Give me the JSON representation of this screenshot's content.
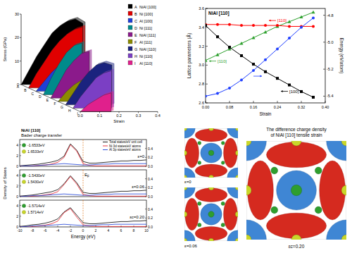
{
  "chart_data": [
    {
      "type": "area",
      "xlabel": "Strain",
      "ylabel": "Stress (GPa)",
      "x": [
        0,
        0.04,
        0.08,
        0.12,
        0.16,
        0.2,
        0.24,
        0.28,
        0.32,
        0.36
      ],
      "xlim": [
        0,
        0.4
      ],
      "xticks": [
        {
          "value": 0,
          "label": "0.0"
        },
        0.1,
        0.2,
        0.3,
        0.4
      ],
      "ylim": [
        0,
        30
      ],
      "yticks": [
        0,
        10,
        20,
        30
      ],
      "legend": "upper right",
      "series": [
        {
          "label": "A",
          "name": "NiAl [100]",
          "color": "#000000",
          "values": [
            0,
            6,
            12,
            17,
            22,
            25,
            27,
            28,
            26,
            null
          ]
        },
        {
          "label": "B",
          "name": "Ni [100]",
          "color": "#e00000",
          "values": [
            0,
            6,
            11,
            16,
            20,
            23,
            25,
            26,
            null,
            null
          ]
        },
        {
          "label": "C",
          "name": "Al [100]",
          "color": "#1f3fd8",
          "values": [
            0,
            4,
            8,
            11,
            13,
            14,
            13,
            null,
            null,
            null
          ]
        },
        {
          "label": "D",
          "name": "Ni [111]",
          "color": "#008b8b",
          "values": [
            0,
            7,
            13,
            18,
            21,
            22,
            null,
            null,
            null,
            null
          ]
        },
        {
          "label": "E",
          "name": "NiAl [111]",
          "color": "#8b1a8b",
          "values": [
            0,
            6,
            12,
            16,
            19,
            20,
            null,
            null,
            null,
            null
          ]
        },
        {
          "label": "F",
          "name": "Al [111]",
          "color": "#8b8b00",
          "values": [
            0,
            4,
            7,
            9,
            10,
            null,
            null,
            null,
            null,
            null
          ]
        },
        {
          "label": "G",
          "name": "NiAl [110]",
          "color": "#1a237e",
          "values": [
            0,
            5,
            10,
            14,
            17,
            18,
            17,
            null,
            null,
            null
          ]
        },
        {
          "label": "H",
          "name": "Ni [110]",
          "color": "#7b3fc4",
          "values": [
            0,
            5,
            9,
            13,
            15,
            16,
            null,
            null,
            null,
            null
          ]
        },
        {
          "label": "I",
          "name": "Al [110]",
          "color": "#e0208c",
          "values": [
            0,
            3,
            5,
            7,
            8,
            null,
            null,
            null,
            null,
            null
          ]
        }
      ]
    },
    {
      "type": "line",
      "title": "NiAl [110]",
      "xlabel": "Strain",
      "ylabel": "Lattice parameters (Å)",
      "y2label": "Energy (eV/atom)",
      "x": [
        0,
        0.04,
        0.08,
        0.12,
        0.16,
        0.2,
        0.24,
        0.28,
        0.32,
        0.36
      ],
      "xlim": [
        0,
        0.4
      ],
      "xticks": [
        {
          "value": 0,
          "label": "0.00"
        },
        0.08,
        0.16,
        0.24,
        0.32,
        {
          "value": 0.4,
          "label": "0.40"
        }
      ],
      "ylim": [
        2.6,
        3.6
      ],
      "yticks": [
        2.6,
        2.8,
        {
          "value": 3,
          "label": "3.0"
        },
        3.2,
        3.4,
        3.6
      ],
      "y2lim": [
        -5.45,
        -4.75
      ],
      "y2ticks": [
        -5.4,
        -5.2,
        {
          "value": -5,
          "label": "-5.0"
        },
        -4.8
      ],
      "series": [
        {
          "name": "[110]",
          "color": "#2ca02c",
          "marker": "triangle",
          "values": [
            3.05,
            3.11,
            3.17,
            3.23,
            3.29,
            3.35,
            3.41,
            3.46,
            3.51,
            3.56
          ]
        },
        {
          "name": "[110]",
          "color": "#ff0000",
          "marker": "circle",
          "values": [
            3.43,
            3.43,
            3.43,
            3.42,
            3.42,
            3.42,
            3.42,
            3.41,
            3.41,
            3.41
          ]
        },
        {
          "name": "[100]",
          "color": "#000000",
          "marker": "square",
          "values": [
            3.42,
            3.3,
            3.19,
            3.1,
            3.01,
            2.93,
            2.86,
            2.79,
            2.72,
            2.66
          ]
        },
        {
          "color": "#1f3fff",
          "marker": "circle",
          "axis": "y2",
          "values": [
            -5.4,
            -5.38,
            -5.34,
            -5.28,
            -5.21,
            -5.13,
            -5.05,
            -4.97,
            -4.89,
            -4.82
          ]
        }
      ]
    },
    {
      "type": "line",
      "title": "NiAl [110]",
      "subtitle": "Bader charge transfer",
      "legend": "upper right",
      "annotations": {
        "strain": "ε=0",
        "bader_ni": "-1.6533eV",
        "bader_al": "1.6533eV"
      },
      "fermi_level": 0,
      "x": [
        -10,
        -9,
        -8,
        -7,
        -6,
        -5,
        -4,
        -3,
        -2,
        -1,
        0,
        1,
        2,
        3,
        4,
        5,
        6,
        7,
        8,
        9,
        10
      ],
      "xlim": [
        -10,
        10
      ],
      "ylim": [
        0,
        5
      ],
      "yticks": [
        0,
        2,
        4
      ],
      "y2lim": [
        0,
        0.6
      ],
      "y2ticks": [
        {
          "value": 0,
          "label": "0.0"
        },
        0.2,
        0.4
      ],
      "series": [
        {
          "name": "Total states/eV unit cell",
          "color": "#000000",
          "values": [
            0.1,
            0.2,
            0.3,
            0.4,
            0.6,
            0.8,
            1.1,
            1.9,
            4.2,
            3.0,
            0.9,
            0.6,
            0.6,
            0.7,
            0.8,
            0.9,
            1.0,
            1.0,
            1.1,
            1.1,
            1.2
          ]
        },
        {
          "name": "Ni 3d states/eV atoms",
          "color": "#e8202a",
          "axis": "y2",
          "values": [
            0,
            0,
            0.01,
            0.02,
            0.03,
            0.05,
            0.09,
            0.2,
            0.48,
            0.34,
            0.06,
            0.02,
            0.01,
            0.01,
            0.01,
            0.01,
            0.01,
            0.01,
            0.01,
            0.01,
            0.01
          ]
        },
        {
          "name": "Al 3p states/eV atoms",
          "color": "#1c3fd6",
          "axis": "y2",
          "values": [
            0,
            0.01,
            0.01,
            0.02,
            0.03,
            0.04,
            0.05,
            0.06,
            0.05,
            0.04,
            0.03,
            0.03,
            0.04,
            0.05,
            0.05,
            0.06,
            0.06,
            0.06,
            0.06,
            0.06,
            0.06
          ]
        }
      ]
    },
    {
      "type": "line",
      "ylabel": "Density of States",
      "annotations": {
        "strain": "ε=0.06",
        "bader_ni": "-1.5430eV",
        "bader_al": "1.5430eV"
      },
      "fermi_level": 0,
      "fermi_label": "EF",
      "x": [
        -10,
        -9,
        -8,
        -7,
        -6,
        -5,
        -4,
        -3,
        -2,
        -1,
        0,
        1,
        2,
        3,
        4,
        5,
        6,
        7,
        8,
        9,
        10
      ],
      "xlim": [
        -10,
        10
      ],
      "ylim": [
        0,
        5
      ],
      "yticks": [
        0,
        2,
        4
      ],
      "y2lim": [
        0,
        0.6
      ],
      "y2ticks": [
        {
          "value": 0,
          "label": "0.0"
        },
        0.2,
        0.4
      ],
      "series": [
        {
          "color": "#000000",
          "values": [
            0.1,
            0.2,
            0.3,
            0.5,
            0.7,
            0.9,
            1.3,
            2.4,
            3.9,
            2.6,
            0.8,
            0.6,
            0.6,
            0.7,
            0.8,
            0.9,
            1.0,
            1.0,
            1.1,
            1.1,
            1.2
          ]
        },
        {
          "color": "#e8202a",
          "axis": "y2",
          "values": [
            0,
            0,
            0.01,
            0.02,
            0.04,
            0.06,
            0.11,
            0.27,
            0.45,
            0.28,
            0.05,
            0.02,
            0.01,
            0.01,
            0.01,
            0.01,
            0.01,
            0.01,
            0.01,
            0.01,
            0.01
          ]
        },
        {
          "color": "#1c3fd6",
          "axis": "y2",
          "values": [
            0,
            0.01,
            0.02,
            0.02,
            0.03,
            0.04,
            0.05,
            0.06,
            0.05,
            0.04,
            0.03,
            0.03,
            0.04,
            0.05,
            0.05,
            0.06,
            0.06,
            0.06,
            0.06,
            0.06,
            0.06
          ]
        }
      ]
    },
    {
      "type": "line",
      "xlabel": "Energy (eV)",
      "annotations": {
        "strain": "εc=0.20",
        "bader_ni": "-1.5714eV",
        "bader_al": "1.5714eV"
      },
      "fermi_level": 0,
      "x": [
        -10,
        -9,
        -8,
        -7,
        -6,
        -5,
        -4,
        -3,
        -2,
        -1,
        0,
        1,
        2,
        3,
        4,
        5,
        6,
        7,
        8,
        9,
        10
      ],
      "xlim": [
        -10,
        10
      ],
      "xticks": [
        -10,
        -8,
        -6,
        -4,
        -2,
        0,
        2,
        4,
        6,
        8,
        10
      ],
      "ylim": [
        0,
        5
      ],
      "yticks": [
        0,
        2,
        4
      ],
      "y2lim": [
        0,
        0.6
      ],
      "y2ticks": [
        {
          "value": 0,
          "label": "0.0"
        },
        0.2,
        0.4
      ],
      "series": [
        {
          "color": "#000000",
          "values": [
            0.1,
            0.2,
            0.4,
            0.5,
            0.7,
            1.0,
            1.5,
            2.8,
            3.6,
            2.2,
            0.8,
            0.6,
            0.6,
            0.7,
            0.8,
            0.9,
            1.0,
            1.0,
            1.1,
            1.1,
            1.2
          ]
        },
        {
          "color": "#e8202a",
          "axis": "y2",
          "values": [
            0,
            0,
            0.01,
            0.02,
            0.04,
            0.07,
            0.13,
            0.32,
            0.41,
            0.22,
            0.05,
            0.02,
            0.01,
            0.01,
            0.01,
            0.01,
            0.01,
            0.01,
            0.01,
            0.01,
            0.01
          ]
        },
        {
          "color": "#1c3fd6",
          "axis": "y2",
          "values": [
            0,
            0.01,
            0.02,
            0.03,
            0.03,
            0.04,
            0.05,
            0.06,
            0.05,
            0.04,
            0.03,
            0.03,
            0.04,
            0.05,
            0.05,
            0.06,
            0.06,
            0.06,
            0.06,
            0.06,
            0.06
          ]
        }
      ]
    }
  ],
  "images": {
    "panels": [
      {
        "label": "ε=0"
      },
      {
        "label": "ε=0.06"
      },
      {
        "label": "εc=0.20"
      }
    ],
    "caption": [
      "The difference charge density",
      "of NiAl [110] tensile strain"
    ]
  }
}
